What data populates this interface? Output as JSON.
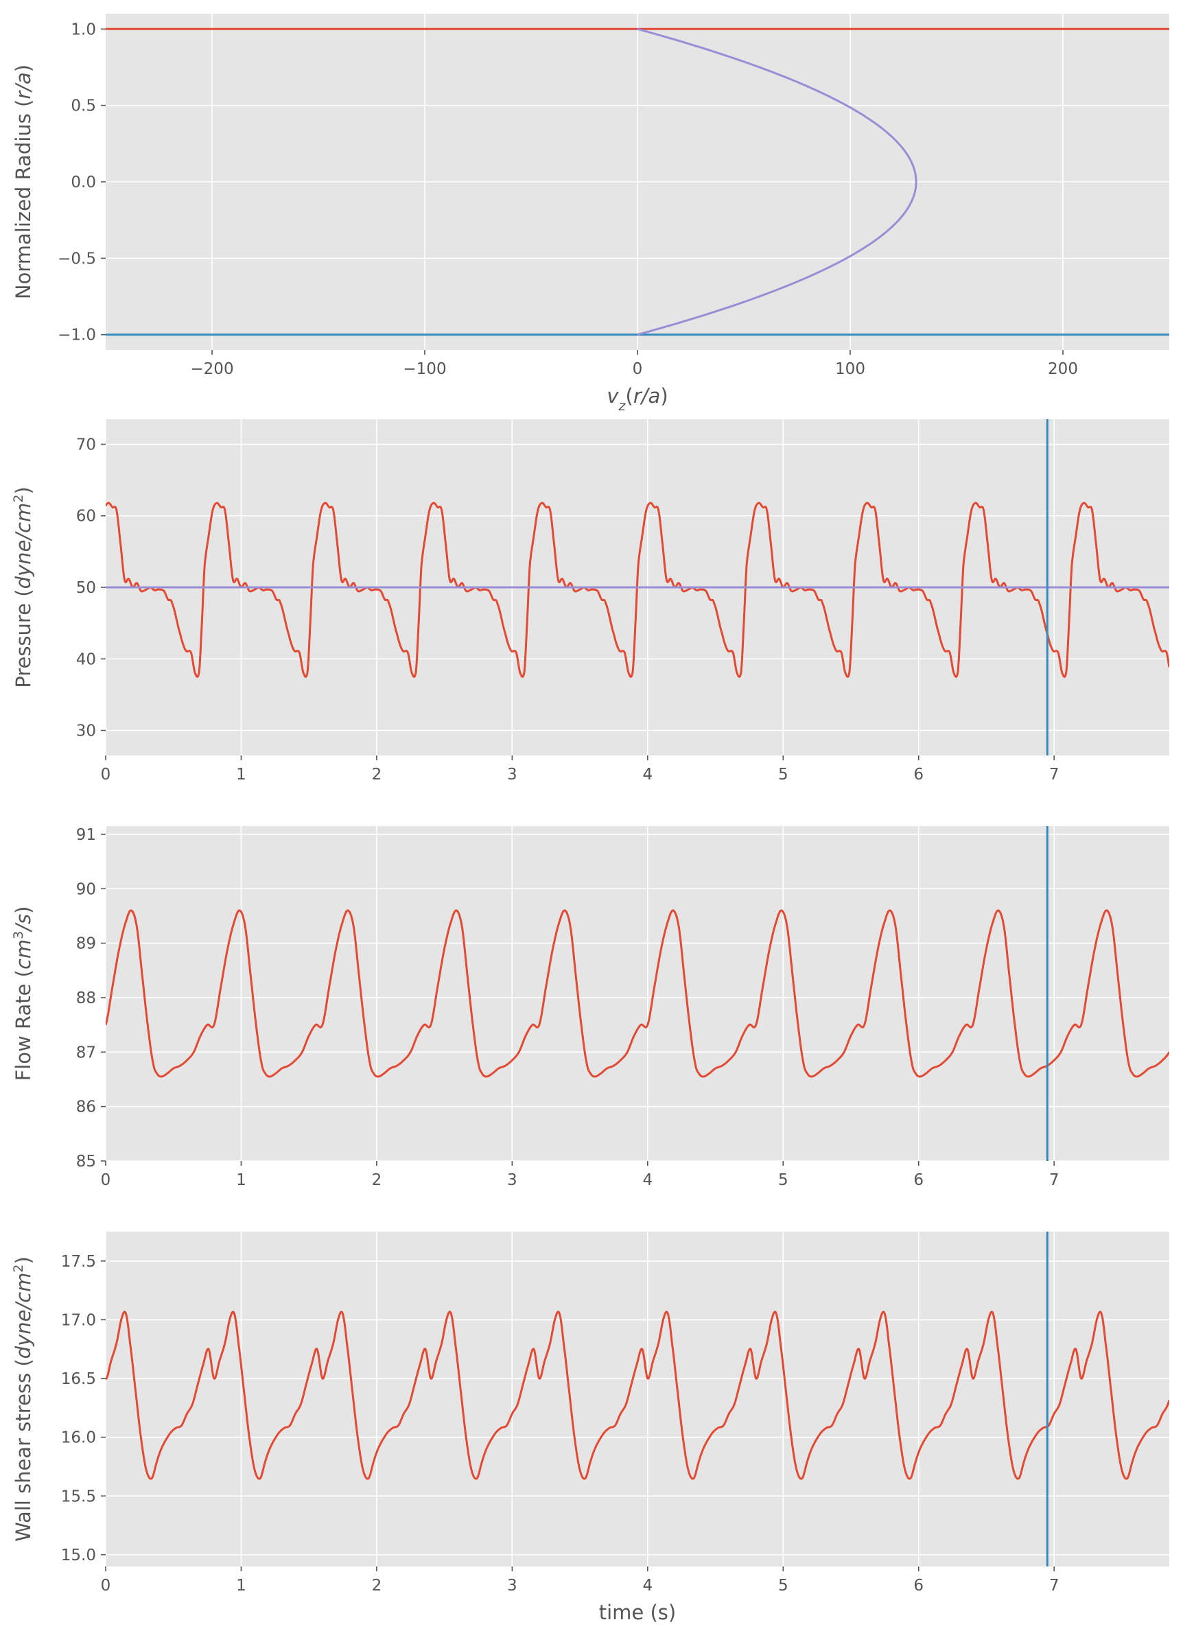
{
  "chart_data": [
    {
      "type": "line",
      "panel": "velocity-profile",
      "xlabel": "v_z(r/a)",
      "ylabel": "Normalized Radius (r/a)",
      "xlim": [
        -250,
        250
      ],
      "ylim": [
        -1.1,
        1.1
      ],
      "xticks": [
        -200,
        -100,
        0,
        100,
        200
      ],
      "yticks": [
        -1.0,
        -0.5,
        0.0,
        0.5,
        1.0
      ],
      "xtick_labels": [
        "−200",
        "−100",
        "0",
        "100",
        "200"
      ],
      "ytick_labels": [
        "−1.0",
        "−0.5",
        "0.0",
        "0.5",
        "1.0"
      ],
      "grid": true,
      "series": [
        {
          "color": "#E24A33",
          "x": [
            -250,
            250
          ],
          "y": [
            1.0,
            1.0
          ]
        },
        {
          "color": "#348ABD",
          "x": [
            -250,
            250
          ],
          "y": [
            -1.0,
            -1.0
          ]
        },
        {
          "color": "#988ED5",
          "profile": "parabolic",
          "peak_velocity": 131,
          "r": [
            -1.0,
            -0.75,
            -0.5,
            -0.25,
            0.0,
            0.25,
            0.5,
            0.75,
            1.0
          ],
          "v": [
            0,
            57.3,
            98.3,
            122.8,
            131,
            122.8,
            98.3,
            57.3,
            0
          ]
        }
      ]
    },
    {
      "type": "line",
      "panel": "pressure",
      "xlabel": "",
      "ylabel": "Pressure (dyne/cm^2)",
      "xlim": [
        0,
        7.85
      ],
      "ylim": [
        26.5,
        73.5
      ],
      "xticks": [
        0,
        1,
        2,
        3,
        4,
        5,
        6,
        7
      ],
      "yticks": [
        30,
        40,
        50,
        60,
        70
      ],
      "grid": true,
      "period": 0.8,
      "vline": {
        "x": 6.95,
        "color": "#348ABD"
      },
      "series": [
        {
          "color": "#E24A33",
          "waveform": "pressure",
          "cycle_t": [
            0,
            0.03,
            0.06,
            0.1,
            0.13,
            0.16,
            0.22,
            0.26,
            0.3,
            0.33,
            0.36,
            0.38,
            0.4,
            0.43,
            0.46,
            0.49,
            0.52,
            0.55,
            0.58,
            0.61,
            0.64,
            0.67,
            0.7,
            0.73,
            0.76,
            0.79,
            0.8
          ],
          "cycle_y": [
            50.0,
            49.6,
            49.7,
            49.5,
            48.3,
            47.8,
            43.5,
            41.2,
            40.9,
            38.0,
            38.2,
            45.0,
            53.0,
            57.2,
            60.8,
            61.8,
            61.2,
            60.8,
            56.0,
            51.0,
            51.2,
            50.0,
            50.6,
            49.5,
            49.6,
            49.9,
            50.0
          ],
          "t_offset": 0.47
        },
        {
          "color": "#988ED5",
          "x": [
            0,
            7.85
          ],
          "y": [
            50.0,
            50.0
          ]
        }
      ]
    },
    {
      "type": "line",
      "panel": "flow-rate",
      "xlabel": "",
      "ylabel": "Flow Rate (cm^3/s)",
      "xlim": [
        0,
        7.85
      ],
      "ylim": [
        85.0,
        91.15
      ],
      "xticks": [
        0,
        1,
        2,
        3,
        4,
        5,
        6,
        7
      ],
      "yticks": [
        85,
        86,
        87,
        88,
        89,
        90,
        91
      ],
      "grid": true,
      "period": 0.8,
      "vline": {
        "x": 6.95,
        "color": "#348ABD"
      },
      "series": [
        {
          "color": "#E24A33",
          "waveform": "flow",
          "cycle_t": [
            0,
            0.05,
            0.1,
            0.15,
            0.19,
            0.23,
            0.27,
            0.31,
            0.35,
            0.38,
            0.41,
            0.45,
            0.5,
            0.55,
            0.6,
            0.65,
            0.7,
            0.75,
            0.8
          ],
          "cycle_y": [
            87.5,
            88.2,
            88.9,
            89.4,
            89.6,
            89.3,
            88.4,
            87.5,
            86.8,
            86.6,
            86.55,
            86.6,
            86.7,
            86.75,
            86.85,
            87.0,
            87.3,
            87.5,
            87.5
          ],
          "t_offset": 0.0
        }
      ]
    },
    {
      "type": "line",
      "panel": "wall-shear-stress",
      "xlabel": "time (s)",
      "ylabel": "Wall shear stress (dyne/cm^2)",
      "xlim": [
        0,
        7.85
      ],
      "ylim": [
        14.9,
        17.75
      ],
      "xticks": [
        0,
        1,
        2,
        3,
        4,
        5,
        6,
        7
      ],
      "yticks": [
        15.0,
        15.5,
        16.0,
        16.5,
        17.0,
        17.5
      ],
      "grid": true,
      "period": 0.8,
      "vline": {
        "x": 6.95,
        "color": "#348ABD"
      },
      "series": [
        {
          "color": "#E24A33",
          "waveform": "wss",
          "cycle_t": [
            0,
            0.04,
            0.08,
            0.12,
            0.15,
            0.18,
            0.22,
            0.26,
            0.3,
            0.34,
            0.38,
            0.41,
            0.44,
            0.48,
            0.52,
            0.56,
            0.6,
            0.64,
            0.68,
            0.72,
            0.76,
            0.8
          ],
          "cycle_y": [
            16.5,
            16.65,
            16.8,
            17.02,
            17.05,
            16.8,
            16.4,
            16.0,
            15.72,
            15.65,
            15.8,
            15.9,
            15.97,
            16.04,
            16.08,
            16.1,
            16.2,
            16.28,
            16.45,
            16.62,
            16.75,
            16.5
          ],
          "t_offset": 0.0
        }
      ]
    }
  ]
}
